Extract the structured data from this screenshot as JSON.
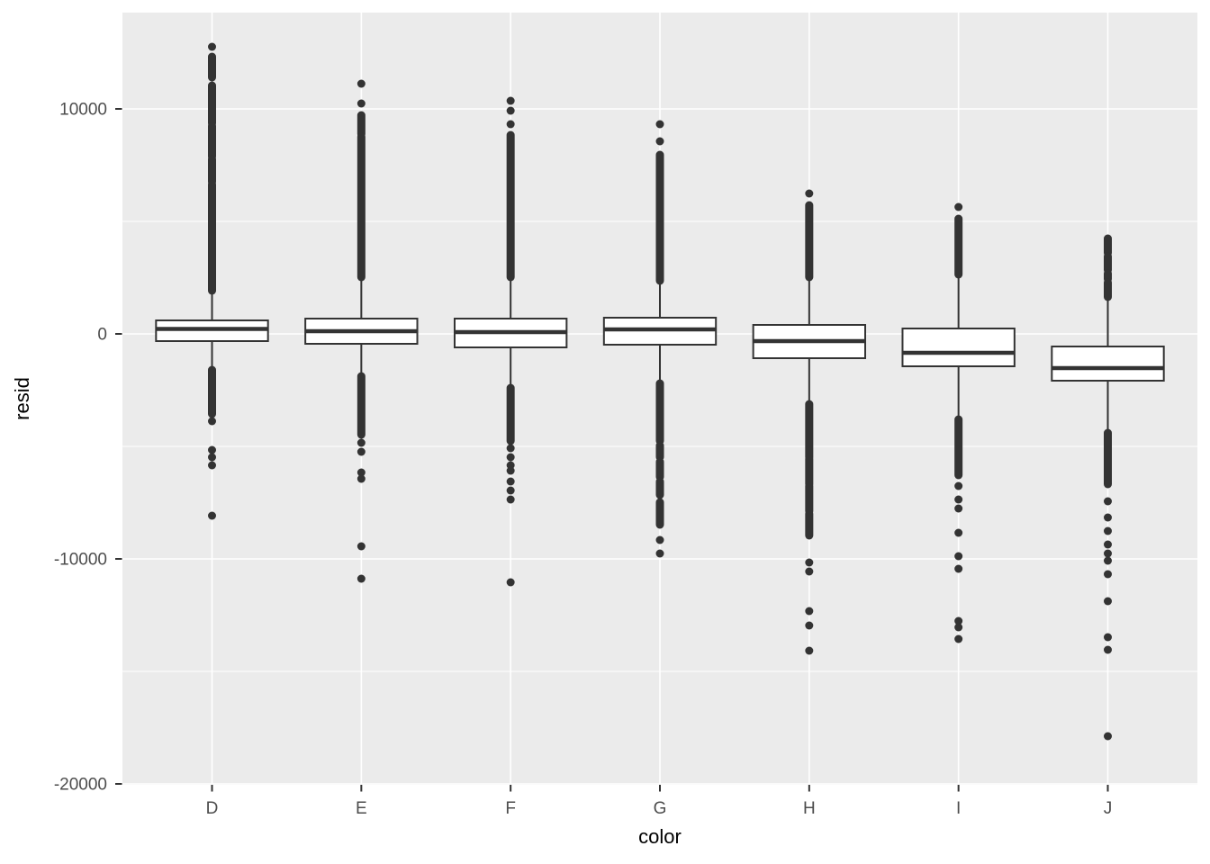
{
  "chart_data": {
    "type": "boxplot",
    "title": "",
    "xlabel": "color",
    "ylabel": "resid",
    "ylim": [
      -20040,
      14280
    ],
    "categories": [
      "D",
      "E",
      "F",
      "G",
      "H",
      "I",
      "J"
    ],
    "y_ticks": [
      {
        "value": 10000,
        "label": "10000"
      },
      {
        "value": 0,
        "label": "0"
      },
      {
        "value": -10000,
        "label": "-10000"
      },
      {
        "value": -20000,
        "label": "-20000"
      }
    ],
    "y_minor": [
      5000,
      -5000,
      -15000
    ],
    "grid": "on",
    "legend": "none",
    "series": [
      {
        "label": "D",
        "q1": -320,
        "median": 220,
        "q3": 600,
        "whisker_low": -1560,
        "whisker_high": 1920,
        "runs_high": [
          [
            12320,
            11400
          ],
          [
            11040,
            9360
          ],
          [
            9240,
            7880
          ],
          [
            7760,
            6760
          ],
          [
            6640,
            1920
          ]
        ],
        "points_high": [
          12760
        ],
        "runs_low": [
          [
            -1600,
            -3560
          ]
        ],
        "points_low": [
          -3880,
          -5160,
          -5480,
          -5840,
          -8080
        ]
      },
      {
        "label": "E",
        "q1": -440,
        "median": 120,
        "q3": 680,
        "whisker_low": -1840,
        "whisker_high": 2520,
        "runs_high": [
          [
            9720,
            8880
          ],
          [
            8760,
            2520
          ]
        ],
        "points_high": [
          11120,
          10240
        ],
        "runs_low": [
          [
            -1880,
            -4480
          ]
        ],
        "points_low": [
          -4840,
          -5240,
          -6160,
          -6440,
          -9440,
          -10880
        ]
      },
      {
        "label": "F",
        "q1": -600,
        "median": 80,
        "q3": 680,
        "whisker_low": -2360,
        "whisker_high": 2520,
        "runs_high": [
          [
            8840,
            2520
          ]
        ],
        "points_high": [
          10360,
          9920,
          9320
        ],
        "runs_low": [
          [
            -2400,
            -4760
          ]
        ],
        "points_low": [
          -5080,
          -5480,
          -5840,
          -6080,
          -6560,
          -6960,
          -7360,
          -11040
        ]
      },
      {
        "label": "G",
        "q1": -480,
        "median": 200,
        "q3": 720,
        "whisker_low": -2160,
        "whisker_high": 2360,
        "runs_high": [
          [
            7960,
            2360
          ]
        ],
        "points_high": [
          9320,
          8560
        ],
        "runs_low": [
          [
            -2200,
            -4760
          ],
          [
            -4960,
            -5480
          ],
          [
            -5680,
            -6360
          ],
          [
            -6560,
            -7160
          ],
          [
            -7480,
            -8480
          ]
        ],
        "points_low": [
          -9160,
          -9760
        ]
      },
      {
        "label": "H",
        "q1": -1080,
        "median": -320,
        "q3": 400,
        "whisker_low": -3080,
        "whisker_high": 2520,
        "runs_high": [
          [
            5720,
            2520
          ]
        ],
        "points_high": [
          6240
        ],
        "runs_low": [
          [
            -3120,
            -5480
          ],
          [
            -5560,
            -6680
          ],
          [
            -6760,
            -7880
          ],
          [
            -8000,
            -8960
          ]
        ],
        "points_low": [
          -10160,
          -10560,
          -12320,
          -12960,
          -14080
        ]
      },
      {
        "label": "I",
        "q1": -1440,
        "median": -840,
        "q3": 240,
        "whisker_low": -3760,
        "whisker_high": 2640,
        "runs_high": [
          [
            5120,
            2640
          ]
        ],
        "points_high": [
          5640
        ],
        "runs_low": [
          [
            -3800,
            -6280
          ]
        ],
        "points_low": [
          -6760,
          -7360,
          -7760,
          -8840,
          -9880,
          -10440,
          -12760,
          -13040,
          -13560
        ]
      },
      {
        "label": "J",
        "q1": -2080,
        "median": -1520,
        "q3": -560,
        "whisker_low": -4360,
        "whisker_high": 1640,
        "runs_high": [
          [
            4240,
            3600
          ],
          [
            3440,
            2840
          ],
          [
            2680,
            2440
          ],
          [
            2280,
            1640
          ]
        ],
        "points_high": [],
        "runs_low": [
          [
            -4400,
            -6680
          ]
        ],
        "points_low": [
          -7440,
          -8160,
          -8760,
          -9360,
          -9760,
          -10080,
          -10680,
          -11880,
          -13480,
          -14040,
          -17880
        ]
      }
    ]
  },
  "style": {
    "panel_bg": "#EBEBEB",
    "grid_color": "#FFFFFF",
    "box_fill": "#FFFFFF",
    "box_stroke": "#333333",
    "point_color": "#333333",
    "tick_mark_color": "#333333",
    "tick_label_color": "#4D4D4D",
    "title_color": "#000000"
  }
}
